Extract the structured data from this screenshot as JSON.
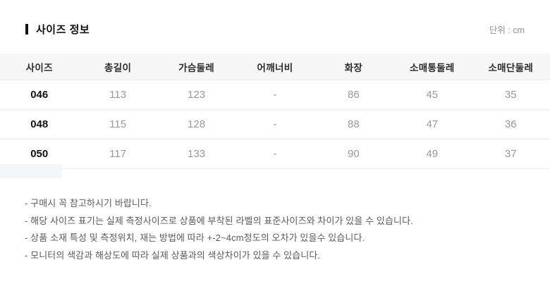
{
  "page": {
    "title": "사이즈 정보",
    "unit_label": "단위 : cm"
  },
  "table": {
    "headers": [
      "사이즈",
      "총길이",
      "가슴둘레",
      "어깨너비",
      "화장",
      "소매통둘레",
      "소매단둘레"
    ],
    "rows": [
      {
        "size": "046",
        "values": [
          "113",
          "123",
          "-",
          "86",
          "45",
          "35"
        ]
      },
      {
        "size": "048",
        "values": [
          "115",
          "128",
          "-",
          "88",
          "47",
          "36"
        ]
      },
      {
        "size": "050",
        "values": [
          "117",
          "133",
          "-",
          "90",
          "49",
          "37"
        ]
      }
    ]
  },
  "notes": [
    "- 구매시 꼭 참고하시기 바랍니다.",
    "- 해당 사이즈 표기는 실제 측정사이즈로 상품에 부착된 라벨의 표준사이즈와 차이가 있을 수 있습니다.",
    "- 상품 소재 특성 및 측정위치, 재는 방법에 따라 +-2~4cm정도의 오차가 있을수 있습니다.",
    "- 모니터의 색감과 해상도에 따라 실제 상품과의 색상차이가 있을 수 있습니다."
  ],
  "colors": {
    "header_background": "#f7f7f7",
    "border": "#ececec",
    "size_text": "#111111",
    "value_text": "#999999",
    "note_text": "#5a5a5a"
  }
}
